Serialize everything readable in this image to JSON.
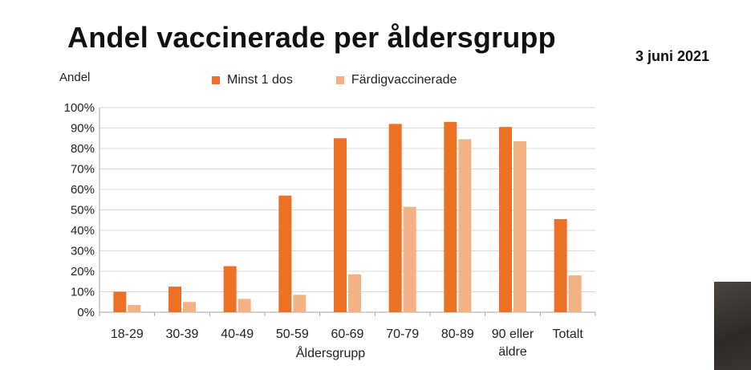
{
  "slide": {
    "title": "Andel vaccinerade per åldersgrupp",
    "date": "3 juni 2021"
  },
  "chart_data": {
    "type": "bar",
    "title": "Andel vaccinerade per åldersgrupp",
    "ylabel": "Andel",
    "xlabel": "Åldersgrupp",
    "ylim": [
      0,
      100
    ],
    "y_unit": "%",
    "y_ticks": [
      "0%",
      "10%",
      "20%",
      "30%",
      "40%",
      "50%",
      "60%",
      "70%",
      "80%",
      "90%",
      "100%"
    ],
    "categories": [
      [
        "18-29"
      ],
      [
        "30-39"
      ],
      [
        "40-49"
      ],
      [
        "50-59"
      ],
      [
        "60-69"
      ],
      [
        "70-79"
      ],
      [
        "80-89"
      ],
      [
        "90 eller",
        "äldre"
      ],
      [
        "Totalt"
      ]
    ],
    "series": [
      {
        "name": "Minst 1 dos",
        "color": "#ED7125",
        "values": [
          10,
          12.5,
          22.5,
          57,
          85,
          92,
          93,
          90.5,
          45.5
        ]
      },
      {
        "name": "Färdigvaccinerade",
        "color": "#F4B183",
        "values": [
          3.5,
          5,
          6.5,
          8.5,
          18.5,
          51.5,
          84.5,
          83.5,
          18
        ]
      }
    ],
    "grid": true,
    "legend_position": "top"
  }
}
